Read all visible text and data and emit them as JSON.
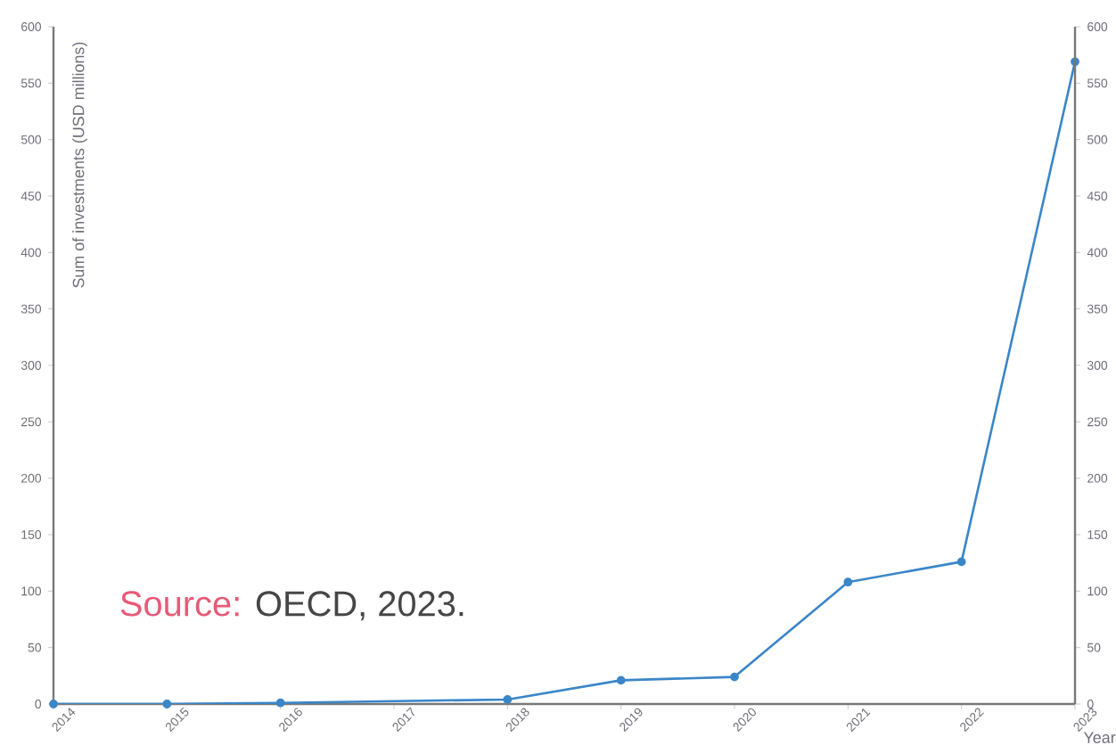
{
  "chart_data": {
    "type": "line",
    "xlabel": "Year",
    "ylabel": "Sum of investments (USD millions)",
    "annotations": [
      "Source:",
      "OECD, 2023."
    ],
    "x": [
      2014,
      2015,
      2016,
      2018,
      2019,
      2020,
      2021,
      2022,
      2023
    ],
    "series": [
      {
        "color": "#3a86c8",
        "values": [
          0,
          0,
          1,
          4,
          21,
          24,
          108,
          126,
          569
        ]
      }
    ],
    "xlim": [
      2014,
      2023
    ],
    "xticks": [
      2014,
      2015,
      2016,
      2017,
      2018,
      2019,
      2020,
      2021,
      2022,
      2023
    ],
    "ylim": [
      0,
      600
    ],
    "yticks": [
      0,
      50,
      100,
      150,
      200,
      250,
      300,
      350,
      400,
      450,
      500,
      550,
      600
    ],
    "y2lim": [
      0,
      600
    ],
    "y2ticks": [
      0,
      50,
      100,
      150,
      200,
      250,
      300,
      350,
      400,
      450,
      500,
      550,
      600
    ],
    "grid": false,
    "marker": "circle",
    "line_style": "solid"
  }
}
